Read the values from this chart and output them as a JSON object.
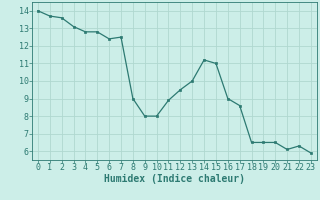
{
  "x": [
    0,
    1,
    2,
    3,
    4,
    5,
    6,
    7,
    8,
    9,
    10,
    11,
    12,
    13,
    14,
    15,
    16,
    17,
    18,
    19,
    20,
    21,
    22,
    23
  ],
  "y": [
    14.0,
    13.7,
    13.6,
    13.1,
    12.8,
    12.8,
    12.4,
    12.5,
    9.0,
    8.0,
    8.0,
    8.9,
    9.5,
    10.0,
    11.2,
    11.0,
    9.0,
    8.6,
    6.5,
    6.5,
    6.5,
    6.1,
    6.3,
    5.9
  ],
  "line_color": "#2d7a72",
  "marker_color": "#2d7a72",
  "bg_color": "#cceee8",
  "grid_color": "#b0d8d0",
  "xlabel": "Humidex (Indice chaleur)",
  "xlim": [
    -0.5,
    23.5
  ],
  "ylim": [
    5.5,
    14.5
  ],
  "xticks": [
    0,
    1,
    2,
    3,
    4,
    5,
    6,
    7,
    8,
    9,
    10,
    11,
    12,
    13,
    14,
    15,
    16,
    17,
    18,
    19,
    20,
    21,
    22,
    23
  ],
  "yticks": [
    6,
    7,
    8,
    9,
    10,
    11,
    12,
    13,
    14
  ],
  "tick_color": "#2d7a72",
  "label_color": "#2d7a72",
  "xlabel_fontsize": 7,
  "tick_fontsize": 6
}
